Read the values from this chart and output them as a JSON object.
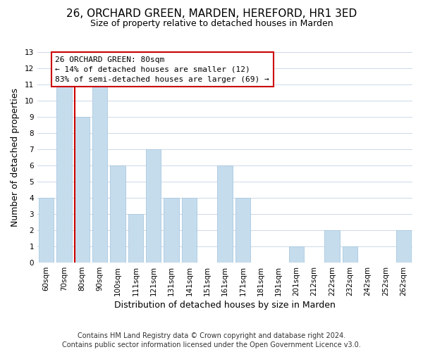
{
  "title": "26, ORCHARD GREEN, MARDEN, HEREFORD, HR1 3ED",
  "subtitle": "Size of property relative to detached houses in Marden",
  "xlabel": "Distribution of detached houses by size in Marden",
  "ylabel": "Number of detached properties",
  "categories": [
    "60sqm",
    "70sqm",
    "80sqm",
    "90sqm",
    "100sqm",
    "111sqm",
    "121sqm",
    "131sqm",
    "141sqm",
    "151sqm",
    "161sqm",
    "171sqm",
    "181sqm",
    "191sqm",
    "201sqm",
    "212sqm",
    "222sqm",
    "232sqm",
    "242sqm",
    "252sqm",
    "262sqm"
  ],
  "values": [
    4,
    11,
    9,
    11,
    6,
    3,
    7,
    4,
    4,
    0,
    6,
    4,
    0,
    0,
    1,
    0,
    2,
    1,
    0,
    0,
    2
  ],
  "bar_color": "#c5dced",
  "vline_index": 2,
  "vline_color": "#cc0000",
  "ylim": [
    0,
    13
  ],
  "yticks": [
    0,
    1,
    2,
    3,
    4,
    5,
    6,
    7,
    8,
    9,
    10,
    11,
    12,
    13
  ],
  "annotation_title": "26 ORCHARD GREEN: 80sqm",
  "annotation_line1": "← 14% of detached houses are smaller (12)",
  "annotation_line2": "83% of semi-detached houses are larger (69) →",
  "annotation_box_facecolor": "#ffffff",
  "annotation_box_edgecolor": "#cc0000",
  "footer1": "Contains HM Land Registry data © Crown copyright and database right 2024.",
  "footer2": "Contains public sector information licensed under the Open Government Licence v3.0.",
  "background_color": "#ffffff",
  "grid_color": "#ccd9e8",
  "title_fontsize": 11,
  "subtitle_fontsize": 9,
  "axis_label_fontsize": 9,
  "tick_fontsize": 7.5,
  "annotation_fontsize": 8,
  "footer_fontsize": 7
}
